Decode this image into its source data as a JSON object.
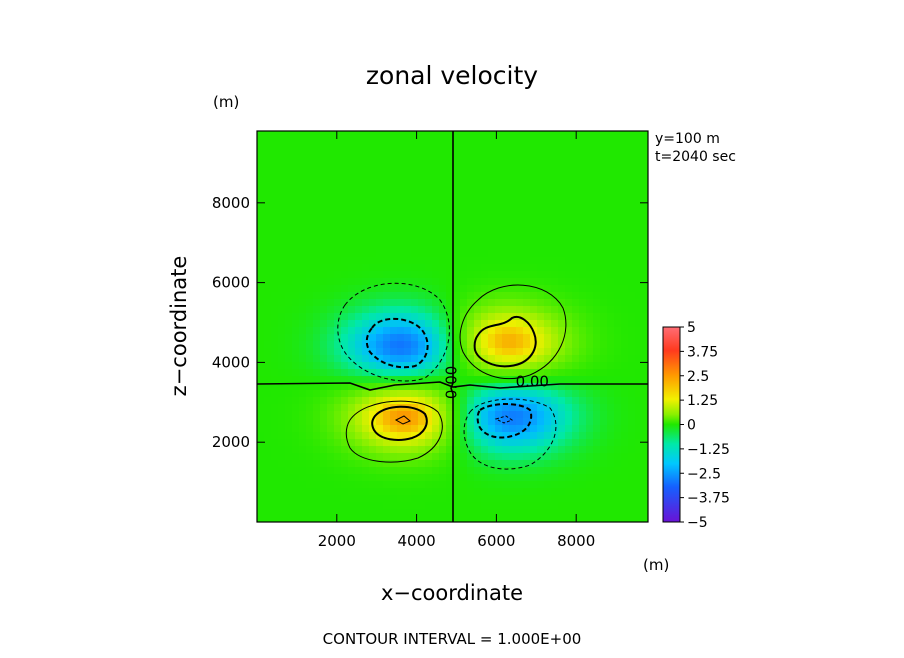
{
  "chart_data": {
    "type": "heatmap",
    "title": "zonal velocity",
    "xlabel": "x−coordinate",
    "ylabel": "z−coordinate",
    "x_unit": "(m)",
    "y_unit": "(m)",
    "xlim": [
      0,
      9800
    ],
    "ylim": [
      0,
      9800
    ],
    "xticks": [
      2000,
      4000,
      6000,
      8000
    ],
    "yticks": [
      2000,
      4000,
      6000,
      8000
    ],
    "xtick_labels": [
      "2000",
      "4000",
      "6000",
      "8000"
    ],
    "ytick_labels": [
      "2000",
      "4000",
      "6000",
      "8000"
    ],
    "info_lines": [
      "y=100  m",
      "t=2040  sec"
    ],
    "colorbar": {
      "min": -5,
      "max": 5,
      "labels": [
        "5",
        "3.75",
        "2.5",
        "1.25",
        "0",
        "−1.25",
        "−2.5",
        "−3.75",
        "−5"
      ]
    },
    "extrema": [
      {
        "x": 3700,
        "z": 4400,
        "value": -3.7
      },
      {
        "x": 6200,
        "z": 4500,
        "value": 3.4
      },
      {
        "x": 3800,
        "z": 2650,
        "value": 3.7
      },
      {
        "x": 6300,
        "z": 2650,
        "value": -3.6
      }
    ],
    "zero_contours": [
      {
        "x": 5000,
        "z": 3500,
        "text": "0.00",
        "orientation": "vertical"
      },
      {
        "x": 6900,
        "z": 3400,
        "text": "0.00",
        "orientation": "horizontal"
      }
    ],
    "footer": "CONTOUR INTERVAL = 1.000E+00"
  }
}
